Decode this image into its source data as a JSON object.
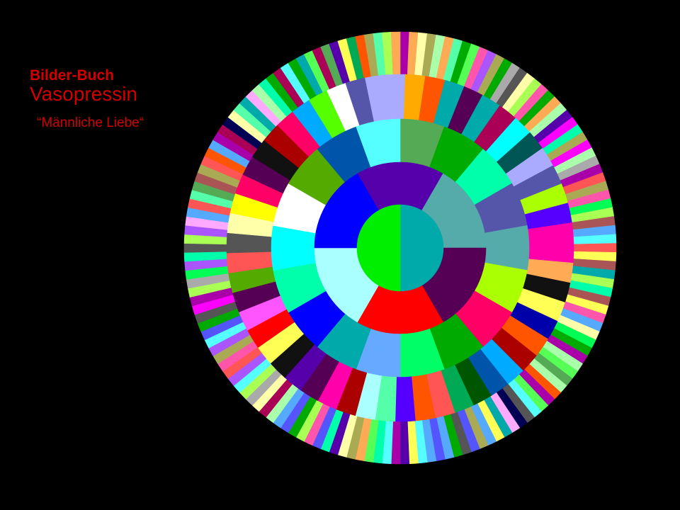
{
  "title": {
    "line1": "Bilder-Buch",
    "line2": "Vasopressin",
    "line3": "“Männliche Liebe“"
  },
  "colors": {
    "background": "#000000",
    "title": "#d40000"
  },
  "wheel": {
    "rings": [
      {
        "name": "ring-1",
        "colors": [
          "#00ee00",
          "#00aaaa"
        ]
      },
      {
        "name": "ring-2",
        "colors": [
          "#5500aa",
          "#55aaaa",
          "#550055",
          "#ff0000",
          "#aaffff",
          "#0000ff"
        ]
      },
      {
        "name": "ring-3",
        "colors": [
          "#55aa55",
          "#00aa00",
          "#00ffaa",
          "#5555aa",
          "#55aaaa",
          "#aaff00",
          "#ff0066",
          "#00aa00",
          "#00ff66",
          "#66aaff",
          "#00aaaa",
          "#0000ff",
          "#00ffaa",
          "#00ffff",
          "#ffffff",
          "#55aa00",
          "#0055aa",
          "#55ffff"
        ]
      },
      {
        "name": "ring-4",
        "colors": [
          "#aaaaff",
          "#ffaa00",
          "#ff5500",
          "#00aaaa",
          "#550055",
          "#00aaaa",
          "#aa0055",
          "#00ffff",
          "#005555",
          "#aaaaff",
          "#5555aa",
          "#aaff00",
          "#5500ff",
          "#ff00aa",
          "#ff00aa",
          "#ffaa55",
          "#111111",
          "#ffff55",
          "#0000aa",
          "#ff5500",
          "#aa0000",
          "#00aaff",
          "#0055aa",
          "#005500",
          "#00aa55",
          "#ff5555",
          "#ff5500",
          "#5500ff",
          "#55ffaa",
          "#aaffff",
          "#aa0000",
          "#ff00aa",
          "#550055",
          "#5500aa",
          "#111111",
          "#ffff55",
          "#ff0000",
          "#ff55ff",
          "#550055",
          "#55aa00",
          "#ff5555",
          "#555555",
          "#ffffaa",
          "#ffff00",
          "#ff0066",
          "#550055",
          "#111111",
          "#aa0000",
          "#ff0066",
          "#00aaff",
          "#55ff00",
          "#ffffff",
          "#5555aa",
          "#aaaaff"
        ]
      },
      {
        "name": "ring-5",
        "palette": [
          "#aa5555",
          "#55ffaa",
          "#aaaa55",
          "#5500aa",
          "#ff55aa",
          "#00aa55",
          "#ffffaa",
          "#555555",
          "#aaff55",
          "#55aaff",
          "#ff5555",
          "#00aaaa",
          "#ffaaff",
          "#aa55ff",
          "#55aa55",
          "#ffff55",
          "#00ffaa",
          "#aa0055",
          "#5555ff",
          "#aaffaa",
          "#ff00ff",
          "#00aa00",
          "#ffaa55",
          "#55ff55",
          "#aa00aa",
          "#000055",
          "#55ffff",
          "#aaaaaa",
          "#00ff55",
          "#ff5500"
        ]
      }
    ]
  }
}
